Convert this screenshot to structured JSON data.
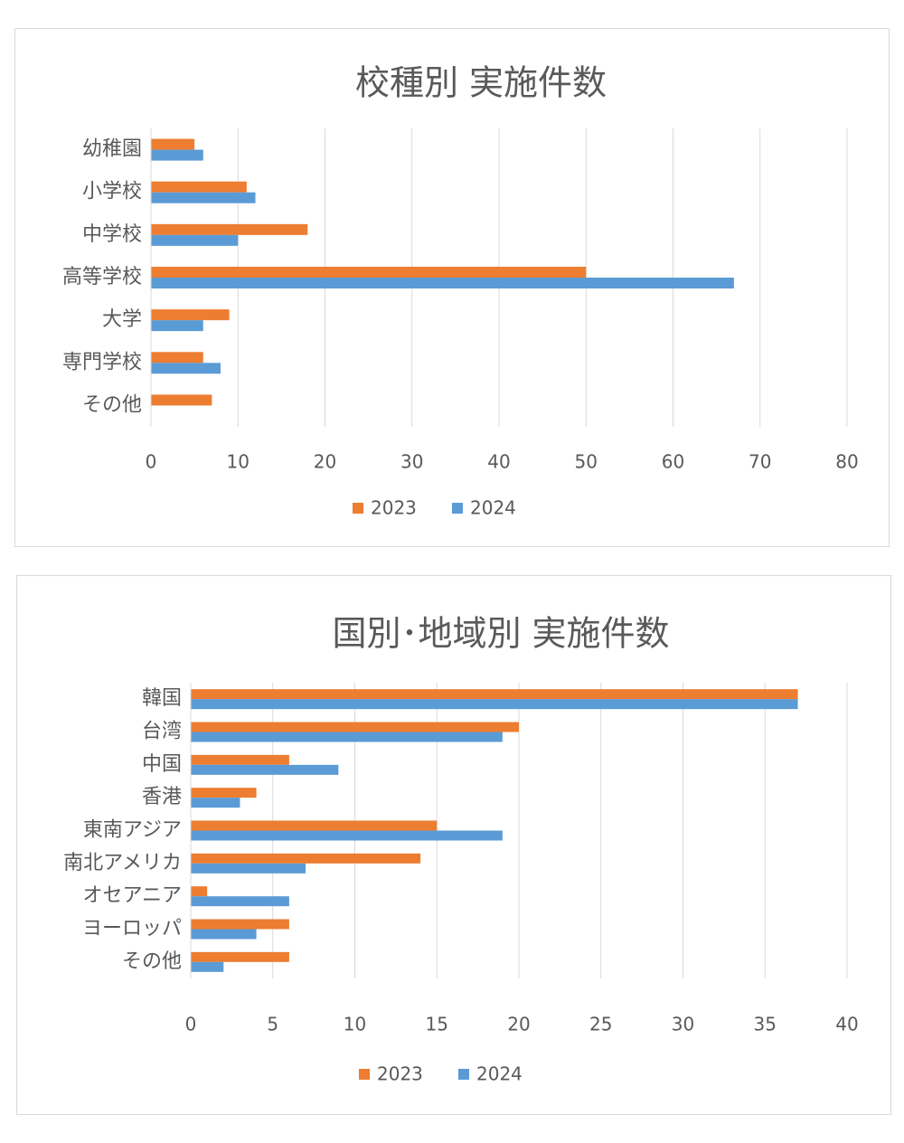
{
  "colors": {
    "s2023": "#ED7D31",
    "s2024": "#5B9BD5",
    "grid": "#d9d9d9"
  },
  "chart_data": [
    {
      "type": "bar",
      "orientation": "horizontal",
      "title": "校種別 実施件数",
      "categories": [
        "幼稚園",
        "小学校",
        "中学校",
        "高等学校",
        "大学",
        "専門学校",
        "その他"
      ],
      "series": [
        {
          "name": "2023",
          "values": [
            5,
            11,
            18,
            50,
            9,
            6,
            7
          ]
        },
        {
          "name": "2024",
          "values": [
            6,
            12,
            10,
            67,
            6,
            8,
            0
          ]
        }
      ],
      "xlim": [
        0,
        80
      ],
      "xticks": [
        0,
        10,
        20,
        30,
        40,
        50,
        60,
        70,
        80
      ],
      "grid": true,
      "legend": "bottom"
    },
    {
      "type": "bar",
      "orientation": "horizontal",
      "title": "国別･地域別 実施件数",
      "categories": [
        "韓国",
        "台湾",
        "中国",
        "香港",
        "東南アジア",
        "南北アメリカ",
        "オセアニア",
        "ヨーロッパ",
        "その他"
      ],
      "series": [
        {
          "name": "2023",
          "values": [
            37,
            20,
            6,
            4,
            15,
            14,
            1,
            6,
            6
          ]
        },
        {
          "name": "2024",
          "values": [
            37,
            19,
            9,
            3,
            19,
            7,
            6,
            4,
            2
          ]
        }
      ],
      "xlim": [
        0,
        40
      ],
      "xticks": [
        0,
        5,
        10,
        15,
        20,
        25,
        30,
        35,
        40
      ],
      "grid": true,
      "legend": "bottom"
    }
  ]
}
